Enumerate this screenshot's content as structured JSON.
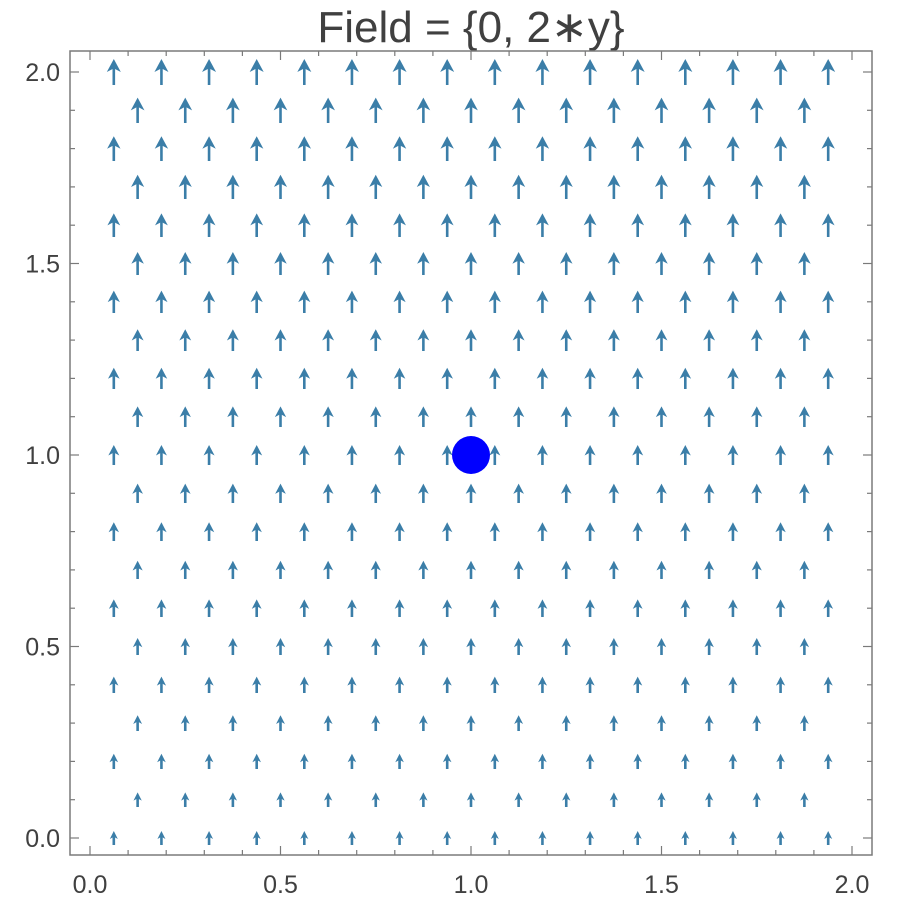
{
  "chart_data": {
    "type": "vector_field",
    "title": "Field = {0, 2∗y}",
    "field": {
      "vx": "0",
      "vy": "2*y"
    },
    "xlim": [
      0,
      2
    ],
    "ylim": [
      0,
      2
    ],
    "x_ticks": [
      0.0,
      0.5,
      1.0,
      1.5,
      2.0
    ],
    "y_ticks": [
      0.0,
      0.5,
      1.0,
      1.5,
      2.0
    ],
    "x_tick_labels": [
      "0.0",
      "0.5",
      "1.0",
      "1.5",
      "2.0"
    ],
    "y_tick_labels": [
      "0.0",
      "0.5",
      "1.0",
      "1.5",
      "2.0"
    ],
    "arrow_grid": {
      "x_start": 0.0625,
      "x_step": 0.125,
      "x_count": 16,
      "y_start": 0.0,
      "y_step": 0.1,
      "y_count": 21,
      "staggered": true
    },
    "arrow_color": "#3b7ea8",
    "point": {
      "x": 1.0,
      "y": 1.0,
      "color": "#0000ff"
    },
    "frame": true,
    "grid": false
  }
}
